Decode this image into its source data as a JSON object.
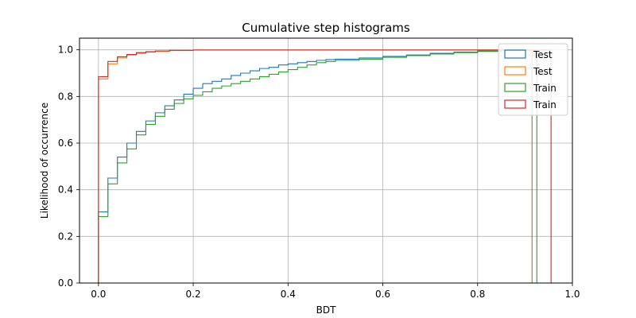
{
  "chart_data": {
    "type": "line",
    "title": "Cumulative step histograms",
    "xlabel": "BDT",
    "ylabel": "Likelihood of occurrence",
    "xlim": [
      -0.04,
      1.0
    ],
    "ylim": [
      0.0,
      1.05
    ],
    "x_ticks": [
      "0.0",
      "0.2",
      "0.4",
      "0.6",
      "0.8",
      "1.0"
    ],
    "y_ticks": [
      "0.0",
      "0.2",
      "0.4",
      "0.6",
      "0.8",
      "1.0"
    ],
    "grid": true,
    "legend_position": "top-right",
    "series": [
      {
        "name": "Test",
        "color": "#1f77b4",
        "x_end": 0.915,
        "points": [
          [
            0.0,
            0.0
          ],
          [
            0.0,
            0.305
          ],
          [
            0.02,
            0.45
          ],
          [
            0.04,
            0.54
          ],
          [
            0.06,
            0.6
          ],
          [
            0.08,
            0.65
          ],
          [
            0.1,
            0.695
          ],
          [
            0.12,
            0.73
          ],
          [
            0.14,
            0.76
          ],
          [
            0.16,
            0.785
          ],
          [
            0.18,
            0.81
          ],
          [
            0.2,
            0.835
          ],
          [
            0.22,
            0.855
          ],
          [
            0.24,
            0.865
          ],
          [
            0.26,
            0.875
          ],
          [
            0.28,
            0.89
          ],
          [
            0.3,
            0.9
          ],
          [
            0.32,
            0.91
          ],
          [
            0.34,
            0.92
          ],
          [
            0.36,
            0.925
          ],
          [
            0.38,
            0.935
          ],
          [
            0.4,
            0.94
          ],
          [
            0.42,
            0.945
          ],
          [
            0.44,
            0.95
          ],
          [
            0.46,
            0.955
          ],
          [
            0.48,
            0.958
          ],
          [
            0.5,
            0.96
          ],
          [
            0.55,
            0.965
          ],
          [
            0.6,
            0.972
          ],
          [
            0.65,
            0.978
          ],
          [
            0.7,
            0.985
          ],
          [
            0.75,
            0.99
          ],
          [
            0.8,
            0.995
          ],
          [
            0.85,
            0.998
          ],
          [
            0.915,
            1.0
          ]
        ]
      },
      {
        "name": "Test",
        "color": "#ff7f0e",
        "x_end": 0.915,
        "points": [
          [
            0.0,
            0.0
          ],
          [
            0.0,
            0.875
          ],
          [
            0.02,
            0.94
          ],
          [
            0.04,
            0.965
          ],
          [
            0.06,
            0.978
          ],
          [
            0.08,
            0.985
          ],
          [
            0.1,
            0.99
          ],
          [
            0.12,
            0.994
          ],
          [
            0.15,
            0.997
          ],
          [
            0.2,
            0.999
          ],
          [
            0.915,
            1.0
          ]
        ]
      },
      {
        "name": "Train",
        "color": "#2ca02c",
        "x_end": 0.925,
        "points": [
          [
            0.0,
            0.0
          ],
          [
            0.0,
            0.285
          ],
          [
            0.02,
            0.425
          ],
          [
            0.04,
            0.515
          ],
          [
            0.06,
            0.575
          ],
          [
            0.08,
            0.635
          ],
          [
            0.1,
            0.68
          ],
          [
            0.12,
            0.715
          ],
          [
            0.14,
            0.745
          ],
          [
            0.16,
            0.77
          ],
          [
            0.18,
            0.79
          ],
          [
            0.2,
            0.805
          ],
          [
            0.22,
            0.82
          ],
          [
            0.24,
            0.835
          ],
          [
            0.26,
            0.845
          ],
          [
            0.28,
            0.855
          ],
          [
            0.3,
            0.865
          ],
          [
            0.32,
            0.875
          ],
          [
            0.34,
            0.885
          ],
          [
            0.36,
            0.895
          ],
          [
            0.38,
            0.905
          ],
          [
            0.4,
            0.915
          ],
          [
            0.42,
            0.925
          ],
          [
            0.44,
            0.935
          ],
          [
            0.46,
            0.945
          ],
          [
            0.48,
            0.95
          ],
          [
            0.5,
            0.955
          ],
          [
            0.55,
            0.96
          ],
          [
            0.6,
            0.968
          ],
          [
            0.65,
            0.975
          ],
          [
            0.7,
            0.982
          ],
          [
            0.75,
            0.988
          ],
          [
            0.8,
            0.993
          ],
          [
            0.85,
            0.997
          ],
          [
            0.925,
            1.0
          ]
        ]
      },
      {
        "name": "Train",
        "color": "#d62728",
        "x_end": 0.955,
        "points": [
          [
            0.0,
            0.0
          ],
          [
            0.0,
            0.885
          ],
          [
            0.02,
            0.95
          ],
          [
            0.04,
            0.97
          ],
          [
            0.06,
            0.98
          ],
          [
            0.08,
            0.988
          ],
          [
            0.1,
            0.992
          ],
          [
            0.12,
            0.995
          ],
          [
            0.15,
            0.998
          ],
          [
            0.2,
            0.999
          ],
          [
            0.955,
            1.0
          ]
        ]
      }
    ]
  }
}
